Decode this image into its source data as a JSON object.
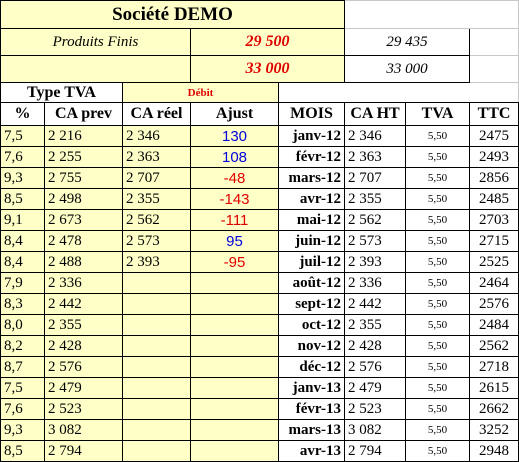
{
  "header": {
    "title": "Société DEMO",
    "label": "Produits Finis",
    "objective": "29 500",
    "actual": "29 435",
    "objective_2": "33 000",
    "actual_2": "33 000"
  },
  "table": {
    "type_label": "Type TVA",
    "mode": "Débit",
    "columns": [
      "%",
      "CA prev",
      "CA réel",
      "Ajust",
      "MOIS",
      "CA HT",
      "TVA",
      "TTC"
    ],
    "rows": [
      [
        "7,5",
        "2 216",
        "2 346",
        "130",
        "janv-12",
        "2 346",
        "5,50",
        "2475"
      ],
      [
        "7,6",
        "2 255",
        "2 363",
        "108",
        "févr-12",
        "2 363",
        "5,50",
        "2493"
      ],
      [
        "9,3",
        "2 755",
        "2 707",
        "-48",
        "mars-12",
        "2 707",
        "5,50",
        "2856"
      ],
      [
        "8,5",
        "2 498",
        "2 355",
        "-143",
        "avr-12",
        "2 355",
        "5,50",
        "2485"
      ],
      [
        "9,1",
        "2 673",
        "2 562",
        "-111",
        "mai-12",
        "2 562",
        "5,50",
        "2703"
      ],
      [
        "8,4",
        "2 478",
        "2 573",
        "95",
        "juin-12",
        "2 573",
        "5,50",
        "2715"
      ],
      [
        "8,4",
        "2 488",
        "2 393",
        "-95",
        "juil-12",
        "2 393",
        "5,50",
        "2525"
      ],
      [
        "7,9",
        "2 336",
        null,
        null,
        "août-12",
        "2 336",
        "5,50",
        "2464"
      ],
      [
        "8,3",
        "2 442",
        null,
        null,
        "sept-12",
        "2 442",
        "5,50",
        "2576"
      ],
      [
        "8,0",
        "2 355",
        null,
        null,
        "oct-12",
        "2 355",
        "5,50",
        "2484"
      ],
      [
        "8,2",
        "2 428",
        null,
        null,
        "nov-12",
        "2 428",
        "5,50",
        "2562"
      ],
      [
        "8,7",
        "2 576",
        null,
        null,
        "déc-12",
        "2 576",
        "5,50",
        "2718"
      ],
      [
        "7,5",
        "2 479",
        null,
        null,
        "janv-13",
        "2 479",
        "5,50",
        "2615"
      ],
      [
        "7,6",
        "2 523",
        null,
        null,
        "févr-13",
        "2 523",
        "5,50",
        "2662"
      ],
      [
        "9,3",
        "3 082",
        null,
        null,
        "mars-13",
        "3 082",
        "5,50",
        "3252"
      ],
      [
        "8,5",
        "2 794",
        null,
        null,
        "avr-13",
        "2 794",
        "5,50",
        "2948"
      ]
    ]
  }
}
